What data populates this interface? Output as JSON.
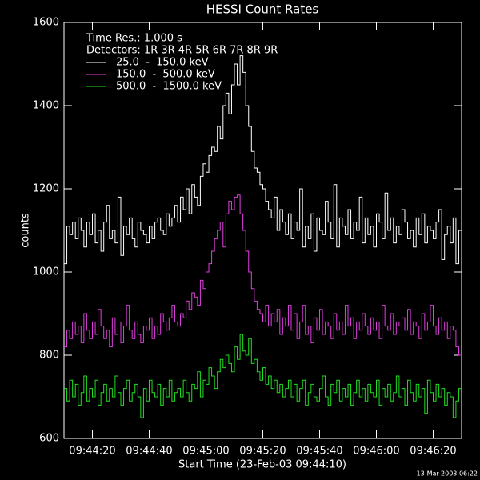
{
  "chart_data": {
    "type": "step-line",
    "title": "HESSI Count Rates",
    "ylabel": "counts",
    "xlabel": "Start Time (23-Feb-03 09:44:10)",
    "legend_header": [
      "Time Res.: 1.000 s",
      "Detectors: 1R 3R 4R 5R 6R 7R 8R 9R"
    ],
    "footer": "13-Mar-2003 06:22",
    "legend": "upper left",
    "xlim": [
      0,
      140
    ],
    "ylim": [
      600,
      1600
    ],
    "yticks": [
      600,
      800,
      1000,
      1200,
      1400,
      1600
    ],
    "xticks": [
      {
        "value": 10,
        "label": "09:44:20"
      },
      {
        "value": 30,
        "label": "09:44:40"
      },
      {
        "value": 50,
        "label": "09:45:00"
      },
      {
        "value": 70,
        "label": "09:45:20"
      },
      {
        "value": 90,
        "label": "09:45:40"
      },
      {
        "value": 110,
        "label": "09:46:00"
      },
      {
        "value": 130,
        "label": "09:46:20"
      }
    ],
    "x": [
      0,
      1,
      2,
      3,
      4,
      5,
      6,
      7,
      8,
      9,
      10,
      11,
      12,
      13,
      14,
      15,
      16,
      17,
      18,
      19,
      20,
      21,
      22,
      23,
      24,
      25,
      26,
      27,
      28,
      29,
      30,
      31,
      32,
      33,
      34,
      35,
      36,
      37,
      38,
      39,
      40,
      41,
      42,
      43,
      44,
      45,
      46,
      47,
      48,
      49,
      50,
      51,
      52,
      53,
      54,
      55,
      56,
      57,
      58,
      59,
      60,
      61,
      62,
      63,
      64,
      65,
      66,
      67,
      68,
      69,
      70,
      71,
      72,
      73,
      74,
      75,
      76,
      77,
      78,
      79,
      80,
      81,
      82,
      83,
      84,
      85,
      86,
      87,
      88,
      89,
      90,
      91,
      92,
      93,
      94,
      95,
      96,
      97,
      98,
      99,
      100,
      101,
      102,
      103,
      104,
      105,
      106,
      107,
      108,
      109,
      110,
      111,
      112,
      113,
      114,
      115,
      116,
      117,
      118,
      119,
      120,
      121,
      122,
      123,
      124,
      125,
      126,
      127,
      128,
      129,
      130,
      131,
      132,
      133,
      134,
      135,
      136,
      137,
      138,
      139
    ],
    "series": [
      {
        "name": "25.0  -  150.0 keV",
        "color": "#ffffff",
        "values": [
          1020,
          1110,
          1090,
          1120,
          1080,
          1130,
          1100,
          1060,
          1120,
          1090,
          1140,
          1070,
          1100,
          1050,
          1120,
          1160,
          1080,
          1100,
          1070,
          1180,
          1040,
          1110,
          1090,
          1130,
          1080,
          1060,
          1120,
          1100,
          1090,
          1070,
          1110,
          1080,
          1120,
          1130,
          1100,
          1090,
          1140,
          1110,
          1130,
          1160,
          1120,
          1180,
          1150,
          1200,
          1140,
          1210,
          1180,
          1160,
          1230,
          1260,
          1240,
          1280,
          1300,
          1290,
          1350,
          1320,
          1400,
          1430,
          1380,
          1450,
          1500,
          1450,
          1520,
          1480,
          1400,
          1350,
          1290,
          1250,
          1240,
          1210,
          1200,
          1170,
          1150,
          1130,
          1180,
          1100,
          1150,
          1120,
          1090,
          1140,
          1080,
          1120,
          1100,
          1200,
          1060,
          1110,
          1080,
          1140,
          1050,
          1130,
          1100,
          1090,
          1170,
          1120,
          1080,
          1210,
          1060,
          1130,
          1110,
          1090,
          1150,
          1080,
          1120,
          1100,
          1180,
          1070,
          1130,
          1090,
          1110,
          1060,
          1140,
          1120,
          1080,
          1190,
          1100,
          1130,
          1070,
          1110,
          1090,
          1150,
          1120,
          1080,
          1100,
          1060,
          1130,
          1090,
          1140,
          1070,
          1110,
          1100,
          1080,
          1120,
          1150,
          1030,
          1090,
          1110,
          1070,
          1130,
          1020,
          1100
        ]
      },
      {
        "name": "150.0  -  500.0 keV",
        "color": "#e040e0",
        "values": [
          820,
          860,
          840,
          880,
          850,
          870,
          830,
          900,
          860,
          840,
          880,
          850,
          910,
          870,
          840,
          860,
          820,
          890,
          850,
          880,
          830,
          870,
          920,
          860,
          840,
          880,
          850,
          830,
          870,
          860,
          890,
          840,
          870,
          850,
          900,
          880,
          860,
          890,
          920,
          880,
          870,
          900,
          890,
          930,
          910,
          950,
          940,
          920,
          980,
          960,
          1000,
          1020,
          1050,
          1080,
          1100,
          1120,
          1060,
          1140,
          1170,
          1150,
          1180,
          1185,
          1140,
          1100,
          1050,
          1000,
          960,
          930,
          910,
          900,
          880,
          920,
          870,
          900,
          880,
          910,
          850,
          890,
          870,
          920,
          860,
          900,
          840,
          880,
          920,
          850,
          870,
          830,
          890,
          860,
          910,
          850,
          880,
          870,
          840,
          900,
          860,
          880,
          850,
          920,
          870,
          890,
          840,
          880,
          860,
          900,
          870,
          850,
          890,
          860,
          880,
          840,
          920,
          870,
          860,
          900,
          850,
          880,
          870,
          890,
          860,
          910,
          850,
          880,
          870,
          840,
          900,
          860,
          880,
          920,
          870,
          850,
          890,
          860,
          880,
          840,
          870,
          860,
          820,
          800
        ]
      },
      {
        "name": "500.0  -  1500.0 keV",
        "color": "#20e020",
        "values": [
          720,
          690,
          740,
          700,
          730,
          680,
          710,
          750,
          690,
          720,
          700,
          740,
          680,
          710,
          730,
          690,
          720,
          700,
          750,
          710,
          680,
          720,
          740,
          690,
          710,
          730,
          700,
          650,
          720,
          690,
          740,
          710,
          700,
          730,
          680,
          720,
          700,
          740,
          690,
          710,
          720,
          700,
          740,
          710,
          690,
          730,
          720,
          760,
          700,
          740,
          730,
          770,
          750,
          720,
          760,
          790,
          770,
          800,
          780,
          760,
          820,
          790,
          850,
          810,
          800,
          840,
          780,
          790,
          760,
          740,
          770,
          730,
          750,
          720,
          740,
          710,
          730,
          700,
          720,
          740,
          700,
          730,
          690,
          720,
          740,
          680,
          710,
          730,
          700,
          690,
          720,
          750,
          700,
          680,
          730,
          710,
          740,
          690,
          720,
          700,
          730,
          680,
          710,
          740,
          700,
          720,
          690,
          730,
          710,
          700,
          740,
          680,
          720,
          700,
          730,
          690,
          710,
          750,
          700,
          720,
          680,
          740,
          710,
          690,
          730,
          700,
          720,
          660,
          740,
          710,
          690,
          730,
          700,
          720,
          680,
          710,
          700,
          650,
          690,
          720
        ]
      }
    ]
  }
}
